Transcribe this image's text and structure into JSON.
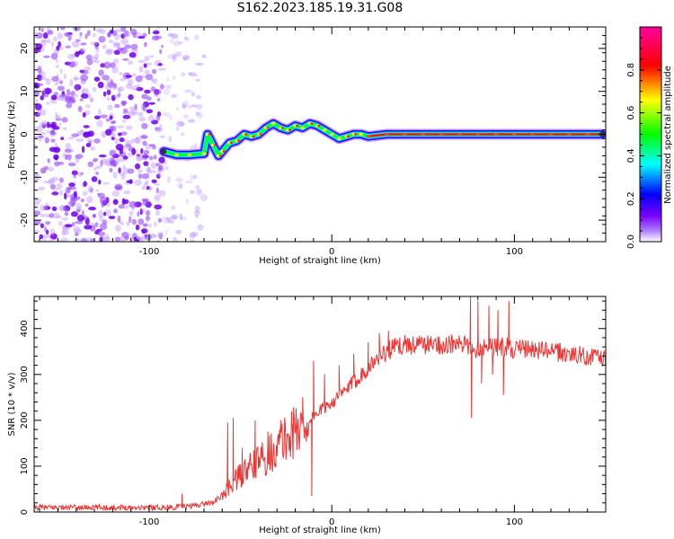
{
  "title": "S162.2023.185.19.31.G08",
  "chart_data": [
    {
      "type": "heatmap",
      "xlabel": "Height of straight line (km)",
      "ylabel": "Frequency (Hz)",
      "xlim": [
        -163,
        150
      ],
      "ylim": [
        -25,
        25
      ],
      "xticks": [
        -100,
        0,
        100
      ],
      "yticks": [
        -20,
        -10,
        0,
        10,
        20
      ],
      "colorbar": {
        "label": "Normalized spectral amplitude",
        "range": [
          0,
          1
        ],
        "ticks": [
          0.0,
          0.2,
          0.4,
          0.6,
          0.8
        ],
        "colors": [
          "#ffffff",
          "#7b00ff",
          "#0000ff",
          "#00ffff",
          "#00ff00",
          "#ffff00",
          "#ff0000",
          "#ff00a0"
        ]
      },
      "noise_region_x": [
        -163,
        -70
      ],
      "ridge": {
        "x": [
          -92,
          -85,
          -78,
          -70,
          -68,
          -65,
          -62,
          -60,
          -56,
          -52,
          -48,
          -44,
          -40,
          -36,
          -32,
          -28,
          -24,
          -20,
          -16,
          -12,
          -8,
          -4,
          0,
          4,
          8,
          12,
          16,
          20,
          30,
          40,
          50,
          60,
          70,
          80,
          90,
          100,
          110,
          120,
          130,
          140,
          148
        ],
        "y": [
          -4,
          -4.8,
          -4.8,
          -4.5,
          0,
          -2.5,
          -5,
          -4,
          -2,
          -1.5,
          0,
          -0.5,
          0,
          1.5,
          2.5,
          1.5,
          1,
          2,
          1.5,
          2.5,
          2,
          1,
          0,
          -1,
          -0.5,
          0,
          0,
          -0.5,
          0,
          0,
          0,
          0,
          0,
          0,
          0,
          0,
          0,
          0,
          0,
          0,
          0
        ]
      }
    },
    {
      "type": "line",
      "xlabel": "Height of straight line (km)",
      "ylabel": "SNR (10 * v/v)",
      "xlim": [
        -163,
        150
      ],
      "ylim": [
        0,
        470
      ],
      "xticks": [
        -100,
        0,
        100
      ],
      "yticks": [
        0,
        100,
        200,
        300,
        400
      ],
      "color": "#ee3333",
      "series": [
        {
          "x": [
            -163,
            -140,
            -120,
            -100,
            -90,
            -80,
            -75,
            -70,
            -65,
            -60,
            -55,
            -50,
            -45,
            -40,
            -35,
            -30,
            -25,
            -20,
            -15,
            -10,
            -5,
            0,
            5,
            10,
            15,
            20,
            25,
            30,
            35,
            40,
            50,
            60,
            70,
            75,
            80,
            85,
            90,
            95,
            100,
            110,
            120,
            130,
            140,
            150
          ],
          "values": [
            10,
            10,
            10,
            10,
            10,
            12,
            15,
            18,
            22,
            35,
            60,
            80,
            95,
            110,
            125,
            140,
            160,
            175,
            190,
            210,
            225,
            240,
            255,
            275,
            295,
            315,
            335,
            350,
            360,
            365,
            365,
            365,
            365,
            360,
            355,
            365,
            360,
            360,
            355,
            355,
            350,
            345,
            340,
            335
          ]
        }
      ],
      "spikes": [
        {
          "x": -82,
          "y": 40
        },
        {
          "x": -57,
          "y": 195
        },
        {
          "x": -54,
          "y": 205
        },
        {
          "x": -49,
          "y": 140
        },
        {
          "x": -42,
          "y": 200
        },
        {
          "x": -35,
          "y": 175
        },
        {
          "x": -28,
          "y": 200
        },
        {
          "x": -22,
          "y": 220
        },
        {
          "x": -16,
          "y": 250
        },
        {
          "x": -10,
          "y": 330
        },
        {
          "x": -11,
          "y": 35
        },
        {
          "x": -4,
          "y": 300
        },
        {
          "x": 4,
          "y": 320
        },
        {
          "x": 12,
          "y": 345
        },
        {
          "x": 20,
          "y": 370
        },
        {
          "x": 26,
          "y": 390
        },
        {
          "x": 31,
          "y": 395
        },
        {
          "x": 76,
          "y": 470
        },
        {
          "x": 76.5,
          "y": 205
        },
        {
          "x": 80,
          "y": 460
        },
        {
          "x": 82,
          "y": 280
        },
        {
          "x": 86,
          "y": 450
        },
        {
          "x": 88,
          "y": 300
        },
        {
          "x": 91,
          "y": 440
        },
        {
          "x": 94,
          "y": 255
        },
        {
          "x": 97,
          "y": 460
        }
      ]
    }
  ]
}
